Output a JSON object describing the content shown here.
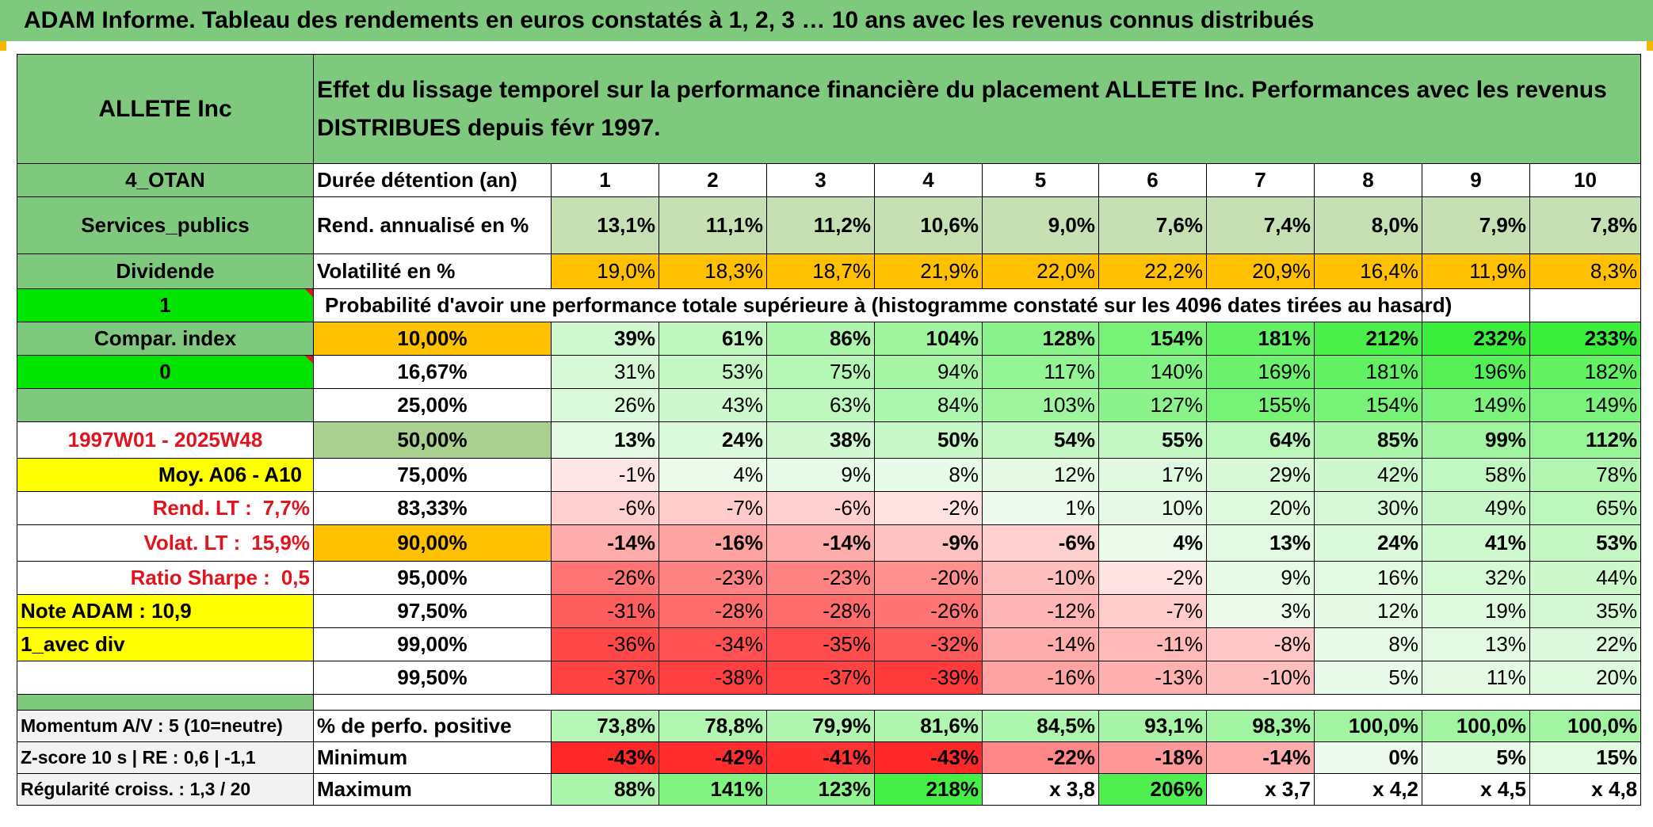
{
  "title": "ADAM Informe. Tableau des rendements en euros constatés à 1, 2, 3 … 10 ans avec les revenus connus distribués",
  "header": {
    "name": "ALLETE Inc",
    "description": "Effet du lissage temporel sur la performance financière du placement ALLETE Inc. Performances avec les revenus DISTRIBUES depuis févr 1997."
  },
  "left": {
    "zone": "4_OTAN",
    "sector": "Services_publics",
    "type": "Dividende",
    "field1": "1",
    "compar": "Compar. index",
    "field0": "0",
    "period": "1997W01 - 2025W48",
    "moy": "Moy. A06 - A10",
    "rend_lt_label": "Rend. LT :",
    "rend_lt_value": "7,7%",
    "volat_lt_label": "Volat. LT :",
    "volat_lt_value": "15,9%",
    "sharpe_label": "Ratio Sharpe :",
    "sharpe_value": "0,5",
    "note": "Note ADAM : 10,9",
    "avec": "1_avec div"
  },
  "durations": {
    "label": "Durée détention (an)",
    "values": [
      "1",
      "2",
      "3",
      "4",
      "5",
      "6",
      "7",
      "8",
      "9",
      "10"
    ]
  },
  "rend": {
    "label": "Rend. annualisé en %",
    "values": [
      "13,1%",
      "11,1%",
      "11,2%",
      "10,6%",
      "9,0%",
      "7,6%",
      "7,4%",
      "8,0%",
      "7,9%",
      "7,8%"
    ]
  },
  "vol": {
    "label": "Volatilité en %",
    "values": [
      "19,0%",
      "18,3%",
      "18,7%",
      "21,9%",
      "22,0%",
      "22,2%",
      "20,9%",
      "16,4%",
      "11,9%",
      "8,3%"
    ]
  },
  "prob_title": "Probabilité d'avoir une performance totale supérieure à (histogramme constaté sur les 4096 dates tirées au hasard)",
  "prob_rows": [
    {
      "p": "10,00%",
      "values": [
        "39%",
        "61%",
        "86%",
        "104%",
        "128%",
        "154%",
        "181%",
        "212%",
        "232%",
        "233%"
      ]
    },
    {
      "p": "16,67%",
      "values": [
        "31%",
        "53%",
        "75%",
        "94%",
        "117%",
        "140%",
        "169%",
        "181%",
        "196%",
        "182%"
      ]
    },
    {
      "p": "25,00%",
      "values": [
        "26%",
        "43%",
        "63%",
        "84%",
        "103%",
        "127%",
        "155%",
        "154%",
        "149%",
        "149%"
      ]
    },
    {
      "p": "50,00%",
      "values": [
        "13%",
        "24%",
        "38%",
        "50%",
        "54%",
        "55%",
        "64%",
        "85%",
        "99%",
        "112%"
      ]
    },
    {
      "p": "75,00%",
      "values": [
        "-1%",
        "4%",
        "9%",
        "8%",
        "12%",
        "17%",
        "29%",
        "42%",
        "58%",
        "78%"
      ]
    },
    {
      "p": "83,33%",
      "values": [
        "-6%",
        "-7%",
        "-6%",
        "-2%",
        "1%",
        "10%",
        "20%",
        "30%",
        "49%",
        "65%"
      ]
    },
    {
      "p": "90,00%",
      "values": [
        "-14%",
        "-16%",
        "-14%",
        "-9%",
        "-6%",
        "4%",
        "13%",
        "24%",
        "41%",
        "53%"
      ]
    },
    {
      "p": "95,00%",
      "values": [
        "-26%",
        "-23%",
        "-23%",
        "-20%",
        "-10%",
        "-2%",
        "9%",
        "16%",
        "32%",
        "44%"
      ]
    },
    {
      "p": "97,50%",
      "values": [
        "-31%",
        "-28%",
        "-28%",
        "-26%",
        "-12%",
        "-7%",
        "3%",
        "12%",
        "19%",
        "35%"
      ]
    },
    {
      "p": "99,00%",
      "values": [
        "-36%",
        "-34%",
        "-35%",
        "-32%",
        "-14%",
        "-11%",
        "-8%",
        "8%",
        "13%",
        "22%"
      ]
    },
    {
      "p": "99,50%",
      "values": [
        "-37%",
        "-38%",
        "-37%",
        "-39%",
        "-16%",
        "-13%",
        "-10%",
        "5%",
        "11%",
        "20%"
      ]
    }
  ],
  "bottom": {
    "momentum": "Momentum A/V : 5 (10=neutre)",
    "zscore": "Z-score 10 s | RE : 0,6 | -1,1",
    "regul": "Régularité croiss. : 1,3 / 20",
    "pos_label": "% de perfo. positive",
    "pos_values": [
      "73,8%",
      "78,8%",
      "79,9%",
      "81,6%",
      "84,5%",
      "93,1%",
      "98,3%",
      "100,0%",
      "100,0%",
      "100,0%"
    ],
    "min_label": "Minimum",
    "min_values": [
      "-43%",
      "-42%",
      "-41%",
      "-43%",
      "-22%",
      "-18%",
      "-14%",
      "0%",
      "5%",
      "15%"
    ],
    "max_label": "Maximum",
    "max_values": [
      "88%",
      "141%",
      "123%",
      "218%",
      "x 3,8",
      "206%",
      "x 3,7",
      "x 4,2",
      "x 4,5",
      "x 4,8"
    ]
  },
  "colors": {
    "green_header": "#7fc97f",
    "bright_green": "#00e400",
    "orange": "#ffc000",
    "yellow": "#ffff00",
    "red_text": "#e0141e",
    "rend_fill": "#c6e0b4"
  }
}
